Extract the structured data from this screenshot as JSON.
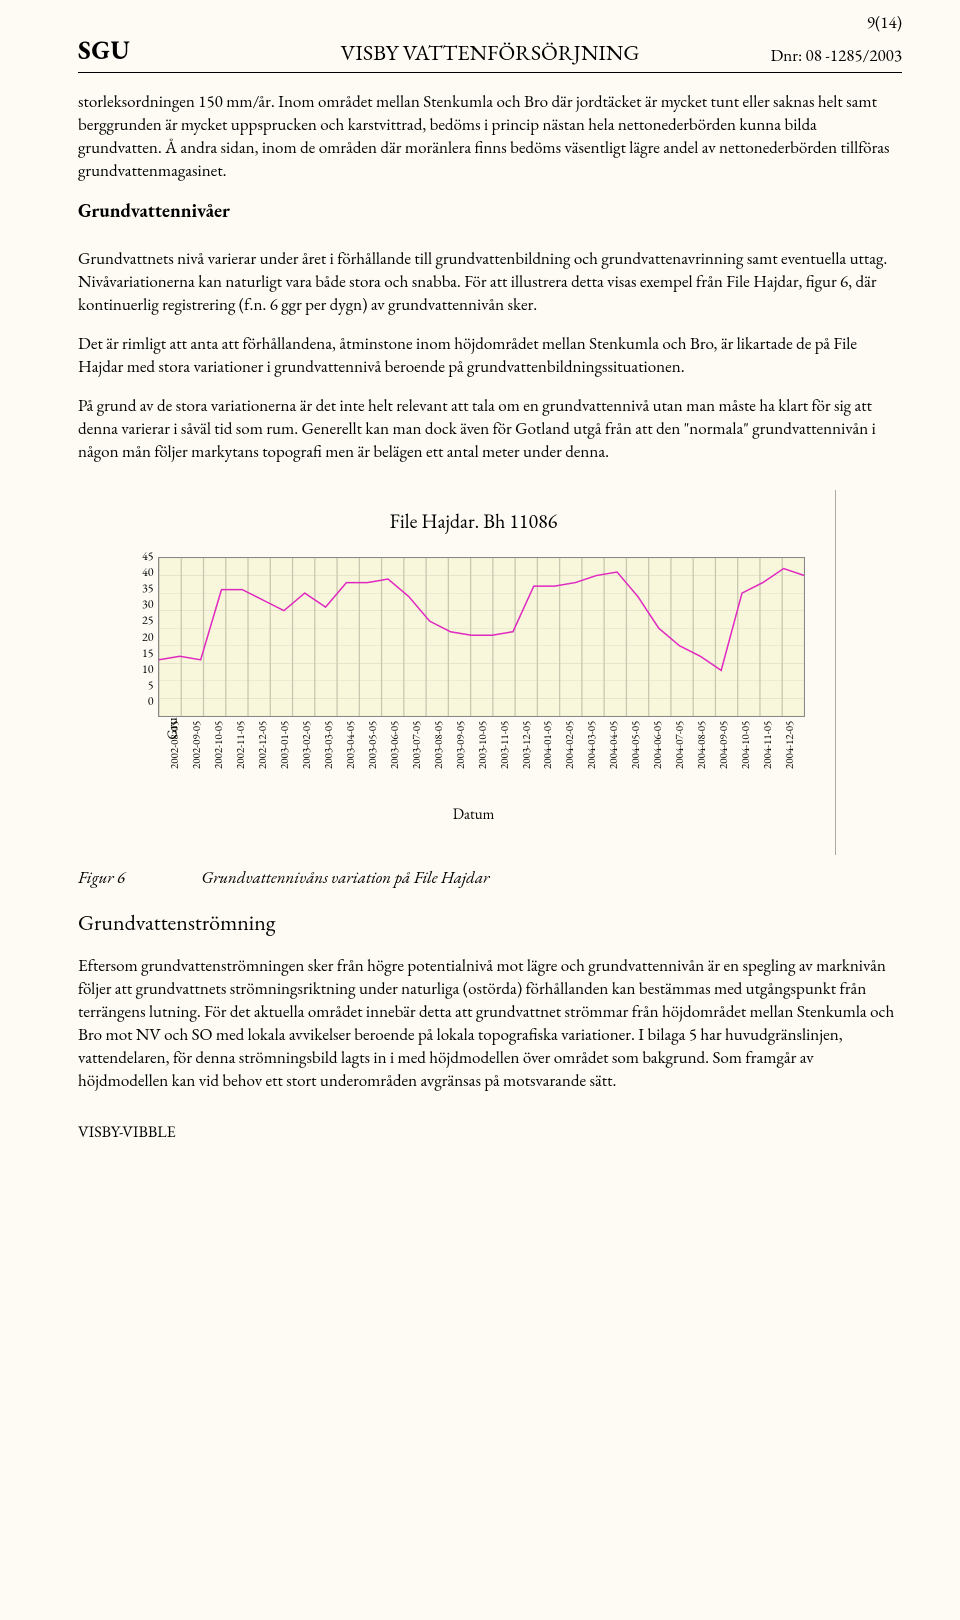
{
  "header": {
    "logo": "SGU",
    "title": "VISBY VATTENFÖRSÖRJNING",
    "dnr": "Dnr: 08 -1285/2003",
    "page": "9(14)"
  },
  "paragraphs": {
    "p1": "storleksordningen 150 mm/år. Inom området mellan Stenkumla och Bro där jordtäcket är mycket tunt eller saknas helt samt berggrunden är mycket uppsprucken och karstvittrad, bedöms i princip nästan hela nettonederbörden kunna bilda grundvatten. Å andra sidan, inom de områden där moränlera finns bedöms väsentligt lägre andel av nettonederbörden tillföras grundvattenmagasinet.",
    "h1": "Grundvattennivåer",
    "p2": "Grundvattnets nivå varierar under året i förhållande till grundvattenbildning och grundvattenavrinning samt eventuella uttag. Nivåvariationerna kan naturligt vara både stora och snabba. För att illustrera detta visas exempel från File Hajdar, figur 6, där kontinuerlig registrering (f.n. 6 ggr per dygn) av grundvattennivån sker.",
    "p3": "Det är rimligt att anta att förhållandena, åtminstone inom höjdområdet mellan Stenkumla och Bro, är likartade de på File Hajdar med stora variationer i grundvattennivå beroende på grundvattenbildningssituationen.",
    "p4": "På grund av de stora variationerna är det inte helt relevant att tala om en grundvattennivå utan man måste ha klart för sig att denna varierar i såväl tid som rum. Generellt kan man dock även för Gotland utgå från att den \"normala\" grundvattennivån i någon mån följer markytans topografi men är belägen ett antal meter under denna.",
    "fig6_num": "Figur 6",
    "fig6_cap": "Grundvattennivåns variation på File Hajdar",
    "h2": "Grundvattenströmning",
    "p5": "Eftersom grundvattenströmningen sker från högre potentialnivå mot lägre och grundvattennivån är en spegling av marknivån följer att grundvattnets strömningsriktning under naturliga (ostörda) förhållanden kan bestämmas med utgångspunkt från terrängens lutning. För det aktuella området innebär detta att grundvattnet strömmar från höjdområdet mellan Stenkumla och Bro mot NV och SO med lokala avvikelser beroende på lokala topografiska variationer. I bilaga 5 har huvudgränslinjen, vattendelaren, för denna strömningsbild lagts in i med höjdmodellen över området som bakgrund. Som framgår av höjdmodellen kan vid behov ett stort underområden avgränsas på motsvarande sätt."
  },
  "chart": {
    "type": "line",
    "title": "File Hajdar. Bh 11086",
    "ylabel": "Grundvattennivå i m.ö.h.",
    "xlabel": "Datum",
    "ylim": [
      0,
      45
    ],
    "ytick_step": 5,
    "yticks": [
      0,
      5,
      10,
      15,
      20,
      25,
      30,
      35,
      40,
      45
    ],
    "background_color": "#f8f7dc",
    "grid_color": "#c8c7b0",
    "line_color": "#e028c0",
    "line_width": 1.5,
    "title_fontsize": 20,
    "label_fontsize": 14,
    "tick_fontsize": 11,
    "xticks": [
      "2002-08-05",
      "2002-09-05",
      "2002-10-05",
      "2002-11-05",
      "2002-12-05",
      "2003-01-05",
      "2003-02-05",
      "2003-03-05",
      "2003-04-05",
      "2003-05-05",
      "2003-06-05",
      "2003-07-05",
      "2003-08-05",
      "2003-09-05",
      "2003-10-05",
      "2003-11-05",
      "2003-12-05",
      "2004-01-05",
      "2004-02-05",
      "2004-03-05",
      "2004-04-05",
      "2004-05-05",
      "2004-06-05",
      "2004-07-05",
      "2004-08-05",
      "2004-09-05",
      "2004-10-05",
      "2004-11-05",
      "2004-12-05"
    ],
    "values": [
      16,
      17,
      16,
      36,
      36,
      33,
      30,
      35,
      31,
      38,
      38,
      39,
      34,
      27,
      24,
      23,
      23,
      24,
      37,
      37,
      38,
      40,
      41,
      34,
      25,
      20,
      17,
      13,
      35,
      38,
      42,
      40
    ]
  },
  "footer": "VISBY-VIBBLE"
}
